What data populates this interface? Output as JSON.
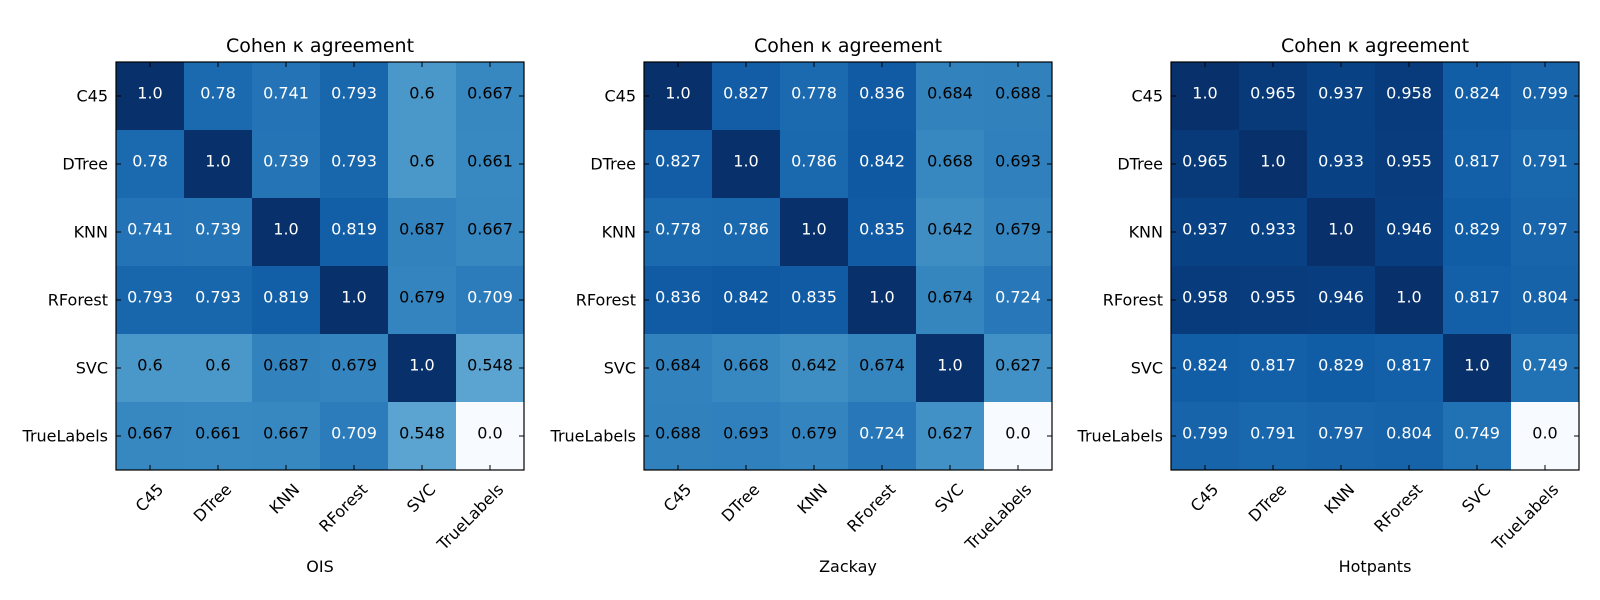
{
  "chart_data": [
    {
      "type": "heatmap",
      "title": "Cohen κ agreement",
      "xlabel": "OIS",
      "categories": [
        "C45",
        "DTree",
        "KNN",
        "RForest",
        "SVC",
        "TrueLabels"
      ],
      "values": [
        [
          1.0,
          0.78,
          0.741,
          0.793,
          0.6,
          0.667
        ],
        [
          0.78,
          1.0,
          0.739,
          0.793,
          0.6,
          0.661
        ],
        [
          0.741,
          0.739,
          1.0,
          0.819,
          0.687,
          0.667
        ],
        [
          0.793,
          0.793,
          0.819,
          1.0,
          0.679,
          0.709
        ],
        [
          0.6,
          0.6,
          0.687,
          0.679,
          1.0,
          0.548
        ],
        [
          0.667,
          0.661,
          0.667,
          0.709,
          0.548,
          0.0
        ]
      ],
      "labels": [
        [
          "1.0",
          "0.78",
          "0.741",
          "0.793",
          "0.6",
          "0.667"
        ],
        [
          "0.78",
          "1.0",
          "0.739",
          "0.793",
          "0.6",
          "0.661"
        ],
        [
          "0.741",
          "0.739",
          "1.0",
          "0.819",
          "0.687",
          "0.667"
        ],
        [
          "0.793",
          "0.793",
          "0.819",
          "1.0",
          "0.679",
          "0.709"
        ],
        [
          "0.6",
          "0.6",
          "0.687",
          "0.679",
          "1.0",
          "0.548"
        ],
        [
          "0.667",
          "0.661",
          "0.667",
          "0.709",
          "0.548",
          "0.0"
        ]
      ],
      "colormap": "Blues"
    },
    {
      "type": "heatmap",
      "title": "Cohen κ agreement",
      "xlabel": "Zackay",
      "categories": [
        "C45",
        "DTree",
        "KNN",
        "RForest",
        "SVC",
        "TrueLabels"
      ],
      "values": [
        [
          1.0,
          0.827,
          0.778,
          0.836,
          0.684,
          0.688
        ],
        [
          0.827,
          1.0,
          0.786,
          0.842,
          0.668,
          0.693
        ],
        [
          0.778,
          0.786,
          1.0,
          0.835,
          0.642,
          0.679
        ],
        [
          0.836,
          0.842,
          0.835,
          1.0,
          0.674,
          0.724
        ],
        [
          0.684,
          0.668,
          0.642,
          0.674,
          1.0,
          0.627
        ],
        [
          0.688,
          0.693,
          0.679,
          0.724,
          0.627,
          0.0
        ]
      ],
      "labels": [
        [
          "1.0",
          "0.827",
          "0.778",
          "0.836",
          "0.684",
          "0.688"
        ],
        [
          "0.827",
          "1.0",
          "0.786",
          "0.842",
          "0.668",
          "0.693"
        ],
        [
          "0.778",
          "0.786",
          "1.0",
          "0.835",
          "0.642",
          "0.679"
        ],
        [
          "0.836",
          "0.842",
          "0.835",
          "1.0",
          "0.674",
          "0.724"
        ],
        [
          "0.684",
          "0.668",
          "0.642",
          "0.674",
          "1.0",
          "0.627"
        ],
        [
          "0.688",
          "0.693",
          "0.679",
          "0.724",
          "0.627",
          "0.0"
        ]
      ],
      "colormap": "Blues"
    },
    {
      "type": "heatmap",
      "title": "Cohen κ agreement",
      "xlabel": "Hotpants",
      "categories": [
        "C45",
        "DTree",
        "KNN",
        "RForest",
        "SVC",
        "TrueLabels"
      ],
      "values": [
        [
          1.0,
          0.965,
          0.937,
          0.958,
          0.824,
          0.799
        ],
        [
          0.965,
          1.0,
          0.933,
          0.955,
          0.817,
          0.791
        ],
        [
          0.937,
          0.933,
          1.0,
          0.946,
          0.829,
          0.797
        ],
        [
          0.958,
          0.955,
          0.946,
          1.0,
          0.817,
          0.804
        ],
        [
          0.824,
          0.817,
          0.829,
          0.817,
          1.0,
          0.749
        ],
        [
          0.799,
          0.791,
          0.797,
          0.804,
          0.749,
          0.0
        ]
      ],
      "labels": [
        [
          "1.0",
          "0.965",
          "0.937",
          "0.958",
          "0.824",
          "0.799"
        ],
        [
          "0.965",
          "1.0",
          "0.933",
          "0.955",
          "0.817",
          "0.791"
        ],
        [
          "0.937",
          "0.933",
          "1.0",
          "0.946",
          "0.829",
          "0.797"
        ],
        [
          "0.958",
          "0.955",
          "0.946",
          "1.0",
          "0.817",
          "0.804"
        ],
        [
          "0.824",
          "0.817",
          "0.829",
          "0.817",
          "1.0",
          "0.749"
        ],
        [
          "0.799",
          "0.791",
          "0.797",
          "0.804",
          "0.749",
          "0.0"
        ]
      ],
      "colormap": "Blues"
    }
  ]
}
